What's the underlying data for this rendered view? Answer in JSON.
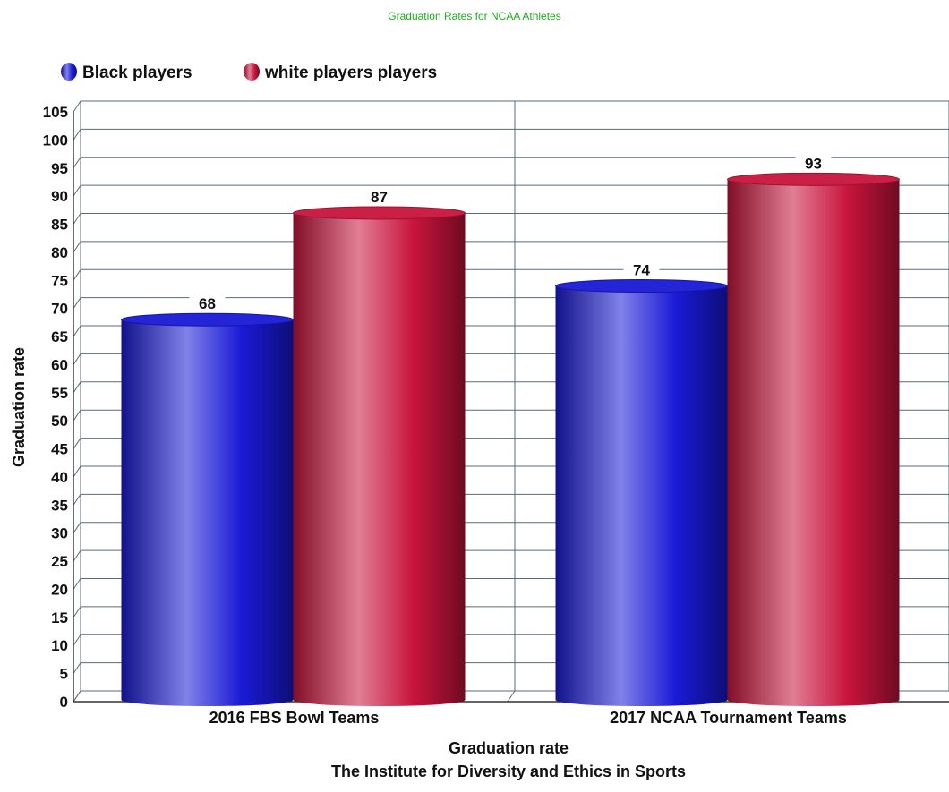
{
  "chart_data": {
    "type": "bar",
    "title": "Graduation Rates for NCAA Athletes",
    "title_color": "#22aa22",
    "categories": [
      "2016 FBS Bowl Teams",
      "2017 NCAA Tournament Teams"
    ],
    "series": [
      {
        "name": "Black players",
        "values": [
          68,
          74
        ],
        "color": "#1a1ad6"
      },
      {
        "name": "white players players",
        "values": [
          87,
          93
        ],
        "color": "#c8143c"
      }
    ],
    "ylabel": "Graduation rate",
    "xlabel": "Graduation rate",
    "xlabel_line2": "The Institute for Diversity and Ethics in Sports",
    "ylim": [
      0,
      105
    ],
    "y_ticks": [
      0,
      5,
      10,
      15,
      20,
      25,
      30,
      35,
      40,
      45,
      50,
      55,
      60,
      65,
      70,
      75,
      80,
      85,
      90,
      95,
      100,
      105
    ],
    "legend_position": "top-left",
    "grid": true,
    "data_labels": true,
    "bar_style": "3d-cylinder"
  }
}
